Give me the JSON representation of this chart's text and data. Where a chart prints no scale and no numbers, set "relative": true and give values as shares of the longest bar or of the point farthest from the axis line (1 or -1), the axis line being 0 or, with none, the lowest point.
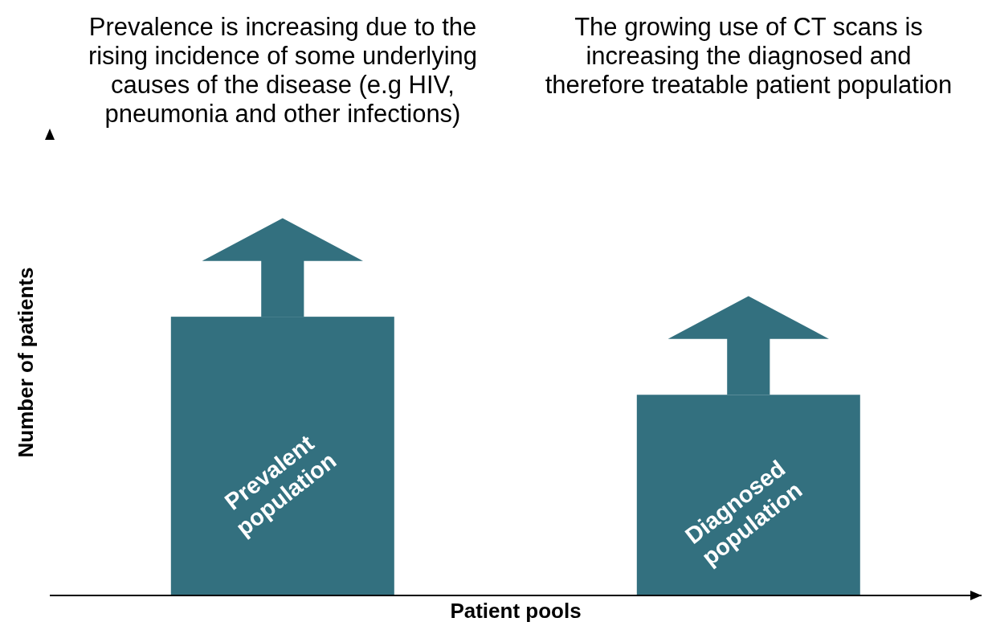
{
  "chart_data": {
    "type": "bar",
    "relative": true,
    "xlabel": "Patient pools",
    "ylabel": "Number of patients",
    "categories": [
      "Prevalent population",
      "Diagnosed population"
    ],
    "values": [
      1,
      0.72
    ],
    "color": "#33707f",
    "tick_labels": false,
    "grid": false,
    "legend": false,
    "annotations": [
      "Prevalence is increasing due to the rising incidence of some underlying causes of the disease (e.g HIV, pneumonia and other infections)",
      "The growing use of CT scans is increasing the diagnosed and therefore treatable patient population"
    ]
  }
}
